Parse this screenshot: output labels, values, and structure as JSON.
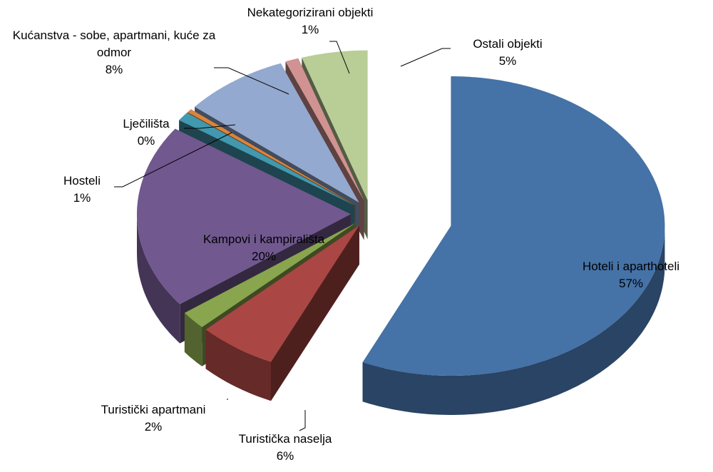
{
  "chart_data": {
    "type": "pie",
    "categories": [
      "Hoteli i aparthoteli",
      "Turistička naselja",
      "Turistički apartmani",
      "Kampovi i kampirališta",
      "Hosteli",
      "Lječilišta",
      "Kućanstva - sobe, apartmani, kuće za odmor",
      "Nekategorizirani objekti",
      "Ostali objekti"
    ],
    "values": [
      57,
      6,
      2,
      20,
      1,
      0.4,
      8,
      1,
      5
    ],
    "value_labels": [
      "57%",
      "6%",
      "2%",
      "20%",
      "1%",
      "0%",
      "8%",
      "1%",
      "5%"
    ],
    "colors": [
      "#4572a7",
      "#aa4643",
      "#89a54e",
      "#71588f",
      "#4198af",
      "#db843d",
      "#93a9cf",
      "#d19392",
      "#b9cd96"
    ]
  }
}
